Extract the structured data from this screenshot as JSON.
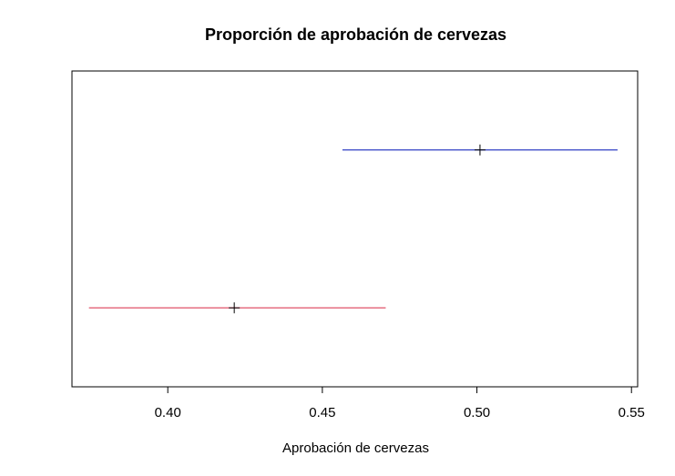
{
  "chart_data": {
    "type": "interval",
    "title": "Proporción de aprobación de cervezas",
    "xlabel": "Aprobación de cervezas",
    "ylabel": "",
    "xlim": [
      0.369,
      0.552
    ],
    "xticks": [
      {
        "value": 0.4,
        "label": "0.40"
      },
      {
        "value": 0.45,
        "label": "0.45"
      },
      {
        "value": 0.5,
        "label": "0.50"
      },
      {
        "value": 0.55,
        "label": "0.55"
      }
    ],
    "grid": false,
    "intervals": [
      {
        "level": 2,
        "low": 0.4565,
        "estimate": 0.501,
        "high": 0.5455,
        "color": "#2f3fc4"
      },
      {
        "level": 1,
        "low": 0.3745,
        "estimate": 0.4215,
        "high": 0.4705,
        "color": "#e0526a"
      }
    ],
    "ylim": [
      0.5,
      2.5
    ]
  }
}
